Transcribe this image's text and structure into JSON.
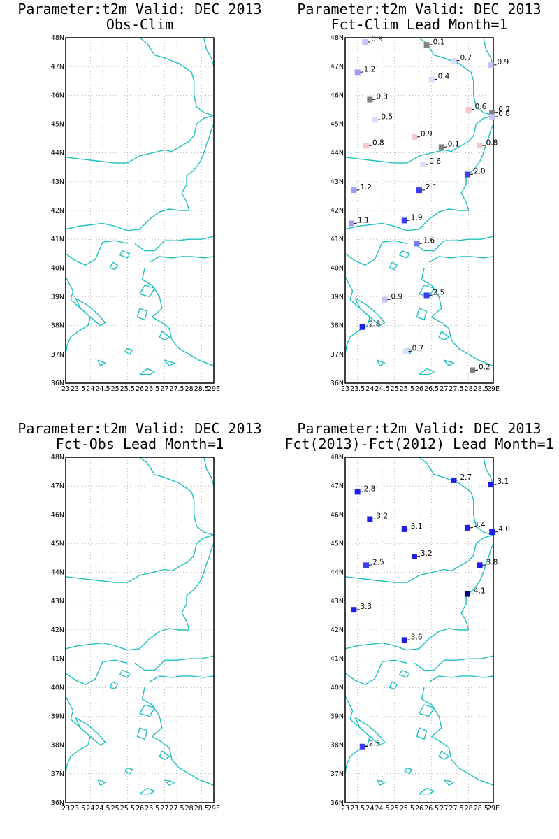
{
  "colors": {
    "coastline": "#20C0C0",
    "grid": "#9a9a9a",
    "frame": "#000000",
    "marker_scale": [
      "#000080",
      "#1E1EE8",
      "#3C3CF0",
      "#7878F4",
      "#9E9EF8",
      "#C4C4FA",
      "#DCDCFC",
      "#808080",
      "#F4C8C8"
    ]
  },
  "axes": {
    "lat_labels": [
      "36N",
      "37N",
      "38N",
      "39N",
      "40N",
      "41N",
      "42N",
      "43N",
      "44N",
      "45N",
      "46N",
      "47N",
      "48N"
    ],
    "lon_labels": [
      "23",
      "23.5",
      "24",
      "24.5",
      "25",
      "25.5",
      "26",
      "26.5",
      "27",
      "27.5",
      "28",
      "28.5",
      "29E"
    ],
    "lat_range": [
      36,
      48
    ],
    "lon_range": [
      23,
      29
    ]
  },
  "panels": [
    {
      "title_line1": "Parameter:t2m Valid: DEC 2013",
      "title_line2": "Obs-Clim",
      "stations": []
    },
    {
      "title_line1": "Parameter:t2m Valid: DEC 2013",
      "title_line2": "Fct-Clim Lead Month=1",
      "stations": [
        {
          "lon": 23.8,
          "lat": 47.85,
          "label": "0.9",
          "value": -0.9
        },
        {
          "lon": 26.3,
          "lat": 47.75,
          "label": "0.1",
          "value": -0.1
        },
        {
          "lon": 27.4,
          "lat": 47.2,
          "label": "0.7",
          "value": -0.7
        },
        {
          "lon": 28.9,
          "lat": 47.05,
          "label": "0.9",
          "value": -0.9
        },
        {
          "lon": 23.5,
          "lat": 46.8,
          "label": "1.2",
          "value": -1.2
        },
        {
          "lon": 26.5,
          "lat": 46.55,
          "label": "0.4",
          "value": -0.4
        },
        {
          "lon": 24.0,
          "lat": 45.85,
          "label": "0.3",
          "value": -0.3
        },
        {
          "lon": 28.0,
          "lat": 45.5,
          "label": "0.6",
          "value": 0.6
        },
        {
          "lon": 28.95,
          "lat": 45.4,
          "label": "0.2",
          "value": -0.2
        },
        {
          "lon": 28.95,
          "lat": 45.25,
          "label": "0.8",
          "value": -0.8
        },
        {
          "lon": 24.2,
          "lat": 45.15,
          "label": "0.5",
          "value": -0.5
        },
        {
          "lon": 25.8,
          "lat": 44.55,
          "label": "0.9",
          "value": 0.9
        },
        {
          "lon": 23.85,
          "lat": 44.25,
          "label": "0.8",
          "value": 0.8
        },
        {
          "lon": 26.9,
          "lat": 44.2,
          "label": "0.1",
          "value": -0.1
        },
        {
          "lon": 28.45,
          "lat": 44.25,
          "label": "0.8",
          "value": 0.8
        },
        {
          "lon": 26.15,
          "lat": 43.6,
          "label": "0.6",
          "value": -0.6
        },
        {
          "lon": 27.95,
          "lat": 43.25,
          "label": "2.0",
          "value": -2.0
        },
        {
          "lon": 23.35,
          "lat": 42.7,
          "label": "1.2",
          "value": -1.2
        },
        {
          "lon": 26.0,
          "lat": 42.7,
          "label": "2.1",
          "value": -2.1
        },
        {
          "lon": 25.4,
          "lat": 41.65,
          "label": "1.9",
          "value": -1.9
        },
        {
          "lon": 23.25,
          "lat": 41.55,
          "label": "1.1",
          "value": -1.1
        },
        {
          "lon": 25.9,
          "lat": 40.85,
          "label": "1.6",
          "value": -1.6
        },
        {
          "lon": 26.3,
          "lat": 39.05,
          "label": "2.5",
          "value": -2.5
        },
        {
          "lon": 24.6,
          "lat": 38.9,
          "label": "0.9",
          "value": -0.9
        },
        {
          "lon": 23.7,
          "lat": 37.95,
          "label": "2.8",
          "value": -2.8
        },
        {
          "lon": 25.45,
          "lat": 37.1,
          "label": "0.7",
          "value": -0.7
        },
        {
          "lon": 28.15,
          "lat": 36.45,
          "label": "0.2",
          "value": -0.2
        }
      ]
    },
    {
      "title_line1": "Parameter:t2m Valid: DEC 2013",
      "title_line2": "Fct-Obs Lead Month=1",
      "stations": []
    },
    {
      "title_line1": "Parameter:t2m Valid: DEC 2013",
      "title_line2": "Fct(2013)-Fct(2012) Lead Month=1",
      "stations": [
        {
          "lon": 27.4,
          "lat": 47.2,
          "label": "2.7",
          "value": -2.7
        },
        {
          "lon": 28.9,
          "lat": 47.05,
          "label": "3.1",
          "value": -3.1
        },
        {
          "lon": 23.5,
          "lat": 46.8,
          "label": "2.8",
          "value": -2.8
        },
        {
          "lon": 24.0,
          "lat": 45.85,
          "label": "3.2",
          "value": -3.2
        },
        {
          "lon": 25.4,
          "lat": 45.5,
          "label": "3.1",
          "value": -3.1
        },
        {
          "lon": 27.95,
          "lat": 45.55,
          "label": "3.4",
          "value": -3.4
        },
        {
          "lon": 28.95,
          "lat": 45.4,
          "label": "4.0",
          "value": -4.0
        },
        {
          "lon": 25.8,
          "lat": 44.55,
          "label": "3.2",
          "value": -3.2
        },
        {
          "lon": 23.85,
          "lat": 44.25,
          "label": "2.5",
          "value": -2.5
        },
        {
          "lon": 28.45,
          "lat": 44.25,
          "label": "3.8",
          "value": -3.8
        },
        {
          "lon": 27.95,
          "lat": 43.25,
          "label": "4.1",
          "value": -4.1
        },
        {
          "lon": 23.35,
          "lat": 42.7,
          "label": "3.3",
          "value": -3.3
        },
        {
          "lon": 25.4,
          "lat": 41.65,
          "label": "3.6",
          "value": -3.6
        },
        {
          "lon": 23.7,
          "lat": 37.95,
          "label": "2.5",
          "value": -2.5
        }
      ]
    }
  ]
}
